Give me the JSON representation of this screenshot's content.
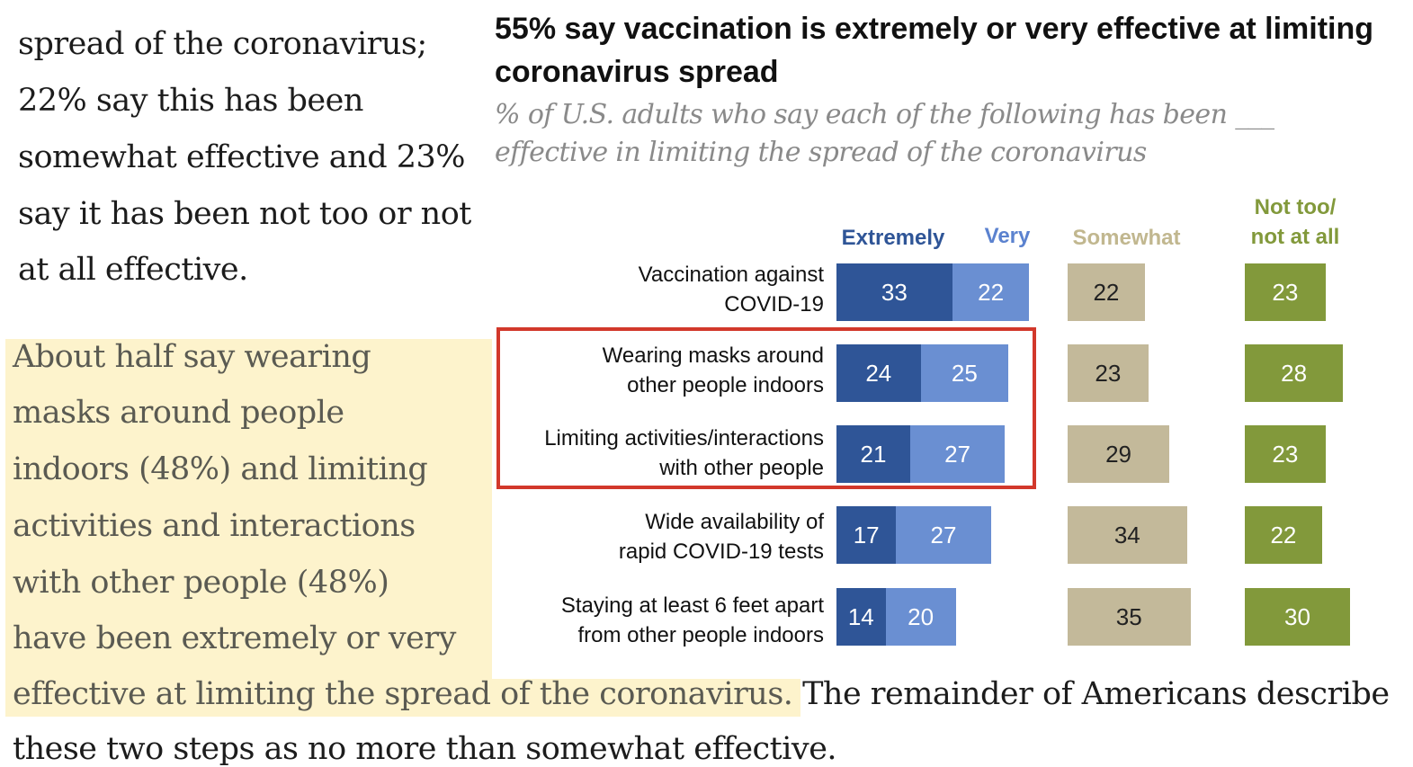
{
  "article": {
    "intro_lines": [
      "spread of the coronavirus;",
      "22% say this has been",
      "somewhat effective and 23%",
      "say it has been not too or not",
      "at all effective."
    ],
    "highlight_lines": [
      "About half say wearing",
      "masks around people",
      "indoors (48%) and limiting",
      "activities and interactions",
      "with other people (48%)",
      "have been extremely or very"
    ],
    "line7_highlighted": "effective at limiting the spread of the coronavirus.",
    "line7_rest": " The remainder of Americans describe",
    "line8": "these two steps as no more than somewhat effective."
  },
  "chart_data": {
    "type": "bar",
    "title": "55% say vaccination is extremely or very effective at limiting coronavirus spread",
    "subtitle_lines": [
      "% of U.S. adults who say each of the following has been ___",
      "effective in limiting the spread of the coronavirus"
    ],
    "column_headers": {
      "extremely": "Extremely",
      "very": "Very",
      "somewhat": "Somewhat",
      "not_too_line1": "Not too/",
      "not_too_line2": "not at all"
    },
    "categories": [
      [
        "Vaccination against",
        "COVID-19"
      ],
      [
        "Wearing masks around",
        "other people indoors"
      ],
      [
        "Limiting activities/interactions",
        "with other people"
      ],
      [
        "Wide availability of",
        "rapid COVID-19 tests"
      ],
      [
        "Staying at least 6 feet apart",
        "from other people indoors"
      ]
    ],
    "series": [
      {
        "name": "Extremely",
        "values": [
          33,
          24,
          21,
          17,
          14
        ]
      },
      {
        "name": "Very",
        "values": [
          22,
          25,
          27,
          27,
          20
        ]
      },
      {
        "name": "Somewhat",
        "values": [
          22,
          23,
          29,
          34,
          35
        ]
      },
      {
        "name": "Not too/not at all",
        "values": [
          23,
          28,
          23,
          22,
          30
        ]
      }
    ],
    "highlighted_rows": [
      1,
      2
    ],
    "colors": {
      "extremely": "#2f5597",
      "very": "#6a8fd2",
      "somewhat": "#c3b99a",
      "not_at_all": "#82993b",
      "somewhat_header": "#c1b78f",
      "not_at_all_header": "#82993b",
      "extremely_header": "#2f5597",
      "very_header": "#5b82cf",
      "callout": "#d2382b",
      "highlight": "#fdf3cc"
    }
  }
}
